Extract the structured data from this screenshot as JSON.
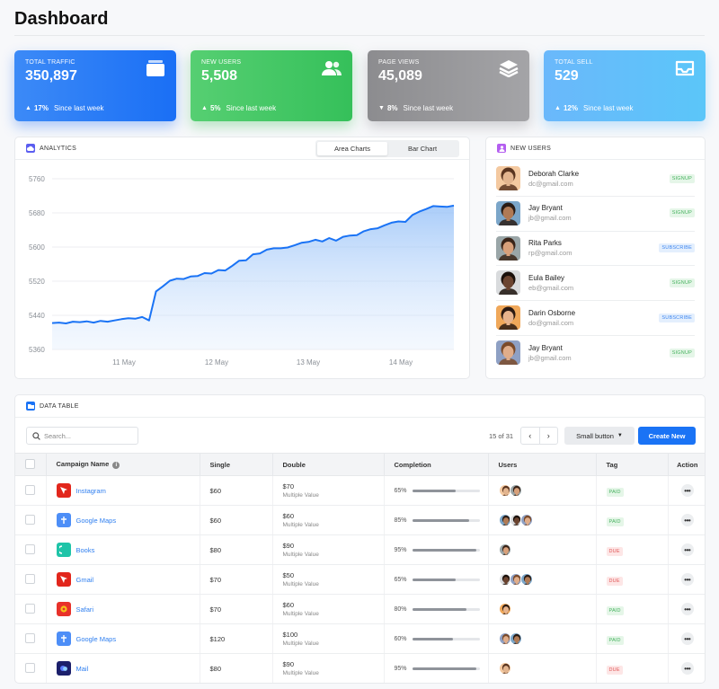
{
  "page": {
    "title": "Dashboard"
  },
  "stats": [
    {
      "label": "TOTAL TRAFFIC",
      "value": "350,897",
      "direction": "up",
      "pct": "17%",
      "since": "Since last week",
      "icon": "wallet-icon"
    },
    {
      "label": "NEW USERS",
      "value": "5,508",
      "direction": "up",
      "pct": "5%",
      "since": "Since last week",
      "icon": "users-icon"
    },
    {
      "label": "PAGE VIEWS",
      "value": "45,089",
      "direction": "down",
      "pct": "8%",
      "since": "Since last week",
      "icon": "layers-icon"
    },
    {
      "label": "TOTAL SELL",
      "value": "529",
      "direction": "up",
      "pct": "12%",
      "since": "Since last week",
      "icon": "inbox-icon"
    }
  ],
  "analytics": {
    "title": "ANALYTICS",
    "tabs": [
      "Area Charts",
      "Bar Chart"
    ],
    "active_tab": "Area Charts"
  },
  "chart_data": {
    "type": "area",
    "title": "",
    "xlabel": "",
    "ylabel": "",
    "ylim": [
      5360,
      5760
    ],
    "yticks": [
      5760,
      5680,
      5600,
      5520,
      5440,
      5360
    ],
    "xticks": [
      "11 May",
      "12 May",
      "13 May",
      "14 May"
    ],
    "grid": true,
    "series": [
      {
        "values": [
          5422,
          5423,
          5421,
          5425,
          5424,
          5426,
          5423,
          5427,
          5425,
          5428,
          5431,
          5433,
          5432,
          5436,
          5428,
          5496,
          5508,
          5521,
          5526,
          5525,
          5531,
          5532,
          5539,
          5538,
          5546,
          5545,
          5556,
          5568,
          5569,
          5583,
          5585,
          5594,
          5597,
          5597,
          5599,
          5604,
          5610,
          5612,
          5617,
          5613,
          5621,
          5615,
          5624,
          5627,
          5628,
          5637,
          5642,
          5644,
          5651,
          5657,
          5660,
          5659,
          5675,
          5683,
          5689,
          5696,
          5695,
          5694,
          5697
        ]
      }
    ]
  },
  "new_users": {
    "title": "NEW USERS",
    "items": [
      {
        "name": "Deborah Clarke",
        "email": "dc@gmail.com",
        "badge": "SIGNUP",
        "skin": "#e3b58f",
        "hair": "#5a3520",
        "bg": "#f4c9a0"
      },
      {
        "name": "Jay Bryant",
        "email": "jb@gmail.com",
        "badge": "SIGNUP",
        "skin": "#b07a55",
        "hair": "#2a1c15",
        "bg": "#7ba6c9"
      },
      {
        "name": "Rita Parks",
        "email": "rp@gmail.com",
        "badge": "SUBSCRIBE",
        "skin": "#d8a07a",
        "hair": "#3a2418",
        "bg": "#9aa6a8"
      },
      {
        "name": "Eula Bailey",
        "email": "eb@gmail.com",
        "badge": "SIGNUP",
        "skin": "#6b4430",
        "hair": "#1a100b",
        "bg": "#d9dbdd"
      },
      {
        "name": "Darin Osborne",
        "email": "do@gmail.com",
        "badge": "SUBSCRIBE",
        "skin": "#e7b38c",
        "hair": "#2b1a12",
        "bg": "#f0a85a"
      },
      {
        "name": "Jay Bryant",
        "email": "jb@gmail.com",
        "badge": "SIGNUP",
        "skin": "#e0ad8a",
        "hair": "#7a4a2a",
        "bg": "#8ea0c4"
      }
    ]
  },
  "table": {
    "title": "DATA TABLE",
    "search_placeholder": "Search...",
    "pager_text": "15 of 31",
    "small_button": "Small button",
    "create_button": "Create New",
    "headers": {
      "campaign": "Campaign Name",
      "single": "Single",
      "double": "Double",
      "completion": "Completion",
      "users": "Users",
      "tag": "Tag",
      "action": "Action"
    },
    "rows": [
      {
        "app": "Instagram",
        "icon": "instagram-icon",
        "color": "#e2261c",
        "single": "$60",
        "double": "$70",
        "double_sub": "Multiple Value",
        "completion": "65%",
        "fill": 0.65,
        "users": 2,
        "tag": "PAID"
      },
      {
        "app": "Google Maps",
        "icon": "google-maps-icon",
        "color": "#4d8ef7",
        "single": "$60",
        "double": "$60",
        "double_sub": "Multiple Value",
        "completion": "85%",
        "fill": 0.85,
        "users": 3,
        "tag": "PAID"
      },
      {
        "app": "Books",
        "icon": "books-icon",
        "color": "#1fc4a8",
        "single": "$80",
        "double": "$90",
        "double_sub": "Multiple Value",
        "completion": "95%",
        "fill": 0.95,
        "users": 1,
        "tag": "DUE"
      },
      {
        "app": "Gmail",
        "icon": "gmail-icon",
        "color": "#e2261c",
        "single": "$70",
        "double": "$50",
        "double_sub": "Multiple Value",
        "completion": "65%",
        "fill": 0.65,
        "users": 3,
        "tag": "DUE"
      },
      {
        "app": "Safari",
        "icon": "safari-icon",
        "color": "#e8312a",
        "single": "$70",
        "double": "$60",
        "double_sub": "Multiple Value",
        "completion": "80%",
        "fill": 0.8,
        "users": 1,
        "tag": "PAID"
      },
      {
        "app": "Google Maps",
        "icon": "google-maps-icon",
        "color": "#4d8ef7",
        "single": "$120",
        "double": "$100",
        "double_sub": "Multiple Value",
        "completion": "60%",
        "fill": 0.6,
        "users": 2,
        "tag": "PAID"
      },
      {
        "app": "Mail",
        "icon": "mail-icon",
        "color": "#1b1f6b",
        "single": "$80",
        "double": "$90",
        "double_sub": "Multiple Value",
        "completion": "95%",
        "fill": 0.95,
        "users": 1,
        "tag": "DUE"
      }
    ]
  }
}
